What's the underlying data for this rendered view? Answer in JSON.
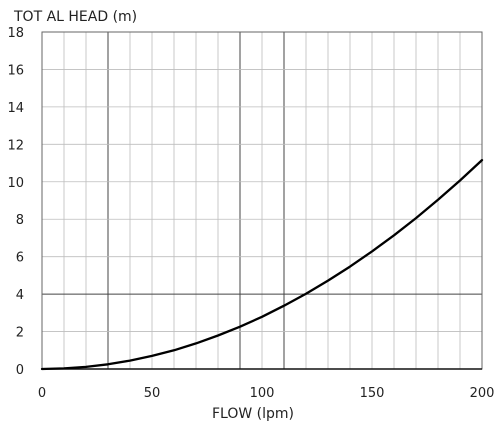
{
  "chart_data": {
    "type": "line",
    "title": "",
    "ylabel": "TOT  AL HEAD (m)",
    "xlabel": "FLOW (lpm)",
    "xlim": [
      0,
      200
    ],
    "ylim": [
      0,
      18
    ],
    "x_ticks": [
      0,
      50,
      100,
      150,
      200
    ],
    "y_ticks": [
      0,
      2,
      4,
      6,
      8,
      10,
      12,
      14,
      16,
      18
    ],
    "grid": true,
    "legend": "none",
    "colors": {
      "line": "#000000",
      "grid_minor": "#bdbdbd",
      "grid_major": "#444444"
    },
    "series": [
      {
        "x": [
          0,
          10,
          20,
          30,
          40,
          50,
          60,
          70,
          80,
          90,
          100,
          110,
          120,
          130,
          140,
          150,
          160,
          170,
          180,
          190,
          200
        ],
        "values": [
          0,
          0.03,
          0.11,
          0.25,
          0.45,
          0.7,
          1.0,
          1.37,
          1.79,
          2.26,
          2.79,
          3.38,
          4.02,
          4.72,
          5.47,
          6.28,
          7.14,
          8.06,
          9.04,
          10.07,
          11.16
        ]
      }
    ]
  }
}
